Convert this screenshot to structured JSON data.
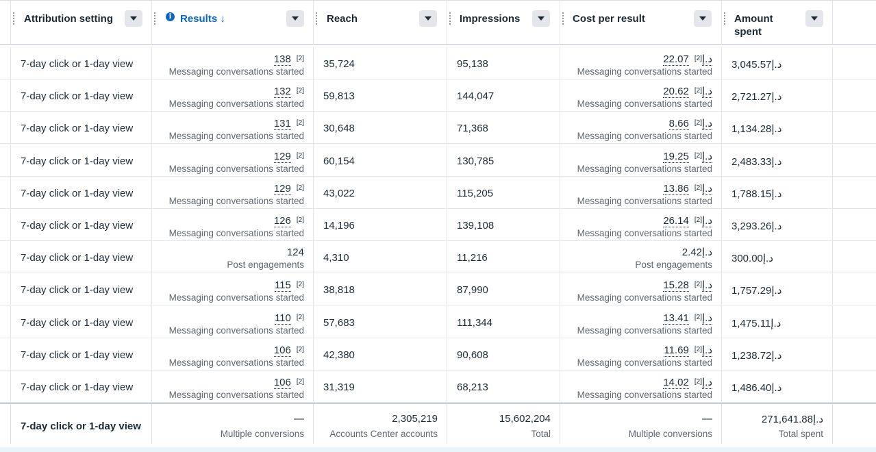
{
  "header": {
    "attribution": "Attribution setting",
    "results": "Results ↓",
    "reach": "Reach",
    "impressions": "Impressions",
    "cost": "Cost per result",
    "amount_line1": "Amount",
    "amount_line2": "spent"
  },
  "rows": [
    {
      "attr": "7-day click or 1-day view",
      "results": "138",
      "results_fn": "[2]",
      "results_sub": "Messaging conversations started",
      "reach": "35,724",
      "impressions": "95,138",
      "cost": "22.07د.إ",
      "cost_fn": "[2]",
      "cost_sub": "Messaging conversations started",
      "amount": "3,045.57د.إ"
    },
    {
      "attr": "7-day click or 1-day view",
      "results": "132",
      "results_fn": "[2]",
      "results_sub": "Messaging conversations started",
      "reach": "59,813",
      "impressions": "144,047",
      "cost": "20.62د.إ",
      "cost_fn": "[2]",
      "cost_sub": "Messaging conversations started",
      "amount": "2,721.27د.إ"
    },
    {
      "attr": "7-day click or 1-day view",
      "results": "131",
      "results_fn": "[2]",
      "results_sub": "Messaging conversations started",
      "reach": "30,648",
      "impressions": "71,368",
      "cost": "8.66د.إ",
      "cost_fn": "[2]",
      "cost_sub": "Messaging conversations started",
      "amount": "1,134.28د.إ"
    },
    {
      "attr": "7-day click or 1-day view",
      "results": "129",
      "results_fn": "[2]",
      "results_sub": "Messaging conversations started",
      "reach": "60,154",
      "impressions": "130,785",
      "cost": "19.25د.إ",
      "cost_fn": "[2]",
      "cost_sub": "Messaging conversations started",
      "amount": "2,483.33د.إ"
    },
    {
      "attr": "7-day click or 1-day view",
      "results": "129",
      "results_fn": "[2]",
      "results_sub": "Messaging conversations started",
      "reach": "43,022",
      "impressions": "115,205",
      "cost": "13.86د.إ",
      "cost_fn": "[2]",
      "cost_sub": "Messaging conversations started",
      "amount": "1,788.15د.إ"
    },
    {
      "attr": "7-day click or 1-day view",
      "results": "126",
      "results_fn": "[2]",
      "results_sub": "Messaging conversations started",
      "reach": "14,196",
      "impressions": "139,108",
      "cost": "26.14د.إ",
      "cost_fn": "[2]",
      "cost_sub": "Messaging conversations started",
      "amount": "3,293.26د.إ"
    },
    {
      "attr": "7-day click or 1-day view",
      "results": "124",
      "results_fn": "",
      "results_sub": "Post engagements",
      "reach": "4,310",
      "impressions": "11,216",
      "cost": "2.42د.إ",
      "cost_fn": "",
      "cost_sub": "Post engagements",
      "amount": "300.00د.إ"
    },
    {
      "attr": "7-day click or 1-day view",
      "results": "115",
      "results_fn": "[2]",
      "results_sub": "Messaging conversations started",
      "reach": "38,818",
      "impressions": "87,990",
      "cost": "15.28د.إ",
      "cost_fn": "[2]",
      "cost_sub": "Messaging conversations started",
      "amount": "1,757.29د.إ"
    },
    {
      "attr": "7-day click or 1-day view",
      "results": "110",
      "results_fn": "[2]",
      "results_sub": "Messaging conversations started",
      "reach": "57,683",
      "impressions": "111,344",
      "cost": "13.41د.إ",
      "cost_fn": "[2]",
      "cost_sub": "Messaging conversations started",
      "amount": "1,475.11د.إ"
    },
    {
      "attr": "7-day click or 1-day view",
      "results": "106",
      "results_fn": "[2]",
      "results_sub": "Messaging conversations started",
      "reach": "42,380",
      "impressions": "90,608",
      "cost": "11.69د.إ",
      "cost_fn": "[2]",
      "cost_sub": "Messaging conversations started",
      "amount": "1,238.72د.إ"
    },
    {
      "attr": "7-day click or 1-day view",
      "results": "106",
      "results_fn": "[2]",
      "results_sub": "Messaging conversations started",
      "reach": "31,319",
      "impressions": "68,213",
      "cost": "14.02د.إ",
      "cost_fn": "[2]",
      "cost_sub": "Messaging conversations started",
      "amount": "1,486.40د.إ"
    }
  ],
  "footer": {
    "attr": "7-day click or 1-day view",
    "results": "—",
    "results_sub": "Multiple conversions",
    "reach": "2,305,219",
    "reach_sub": "Accounts Center accounts",
    "impressions": "15,602,204",
    "impressions_sub": "Total",
    "cost": "—",
    "cost_sub": "Multiple conversions",
    "amount": "271,641.88د.إ",
    "amount_sub": "Total spent"
  }
}
